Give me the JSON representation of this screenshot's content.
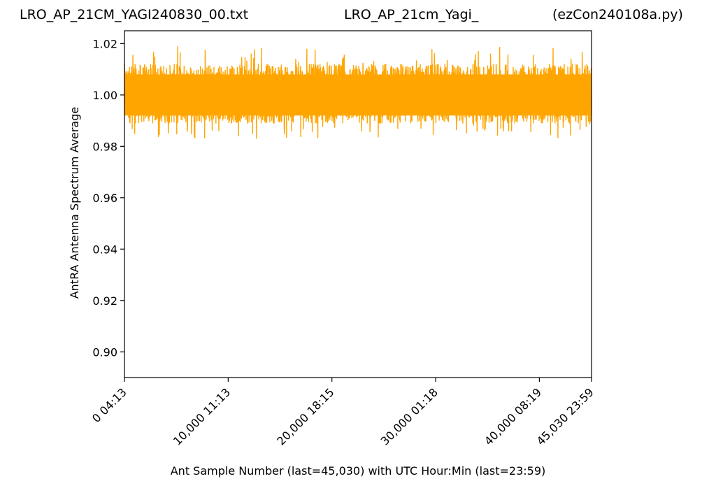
{
  "titles": {
    "left": "LRO_AP_21CM_YAGI240830_00.txt",
    "center": "LRO_AP_21cm_Yagi_",
    "right": "(ezCon240108a.py)"
  },
  "chart_data": {
    "type": "line",
    "xlabel": "Ant Sample Number (last=45,030) with UTC Hour:Min (last=23:59)",
    "ylabel": "AntRA Antenna Spectrum Average",
    "xlim": [
      0,
      45030
    ],
    "ylim": [
      0.89,
      1.025
    ],
    "yticks": [
      0.9,
      0.92,
      0.94,
      0.96,
      0.98,
      1.0,
      1.02
    ],
    "ytick_labels": [
      "0.90",
      "0.92",
      "0.94",
      "0.96",
      "0.98",
      "1.00",
      "1.02"
    ],
    "xticks": [
      0,
      10000,
      20000,
      30000,
      40000,
      45030
    ],
    "xtick_labels": [
      "0  04:13",
      "10,000  11:13",
      "20,000  18:15",
      "30,000  01:18",
      "40,000  08:19",
      "45,030  23:59"
    ],
    "series": [
      {
        "color": "#ffa500",
        "mean": 1.0,
        "band_low": 0.989,
        "band_high": 1.012,
        "extreme_low": 0.983,
        "extreme_high": 1.019
      }
    ],
    "grid": false,
    "legend": "none"
  }
}
